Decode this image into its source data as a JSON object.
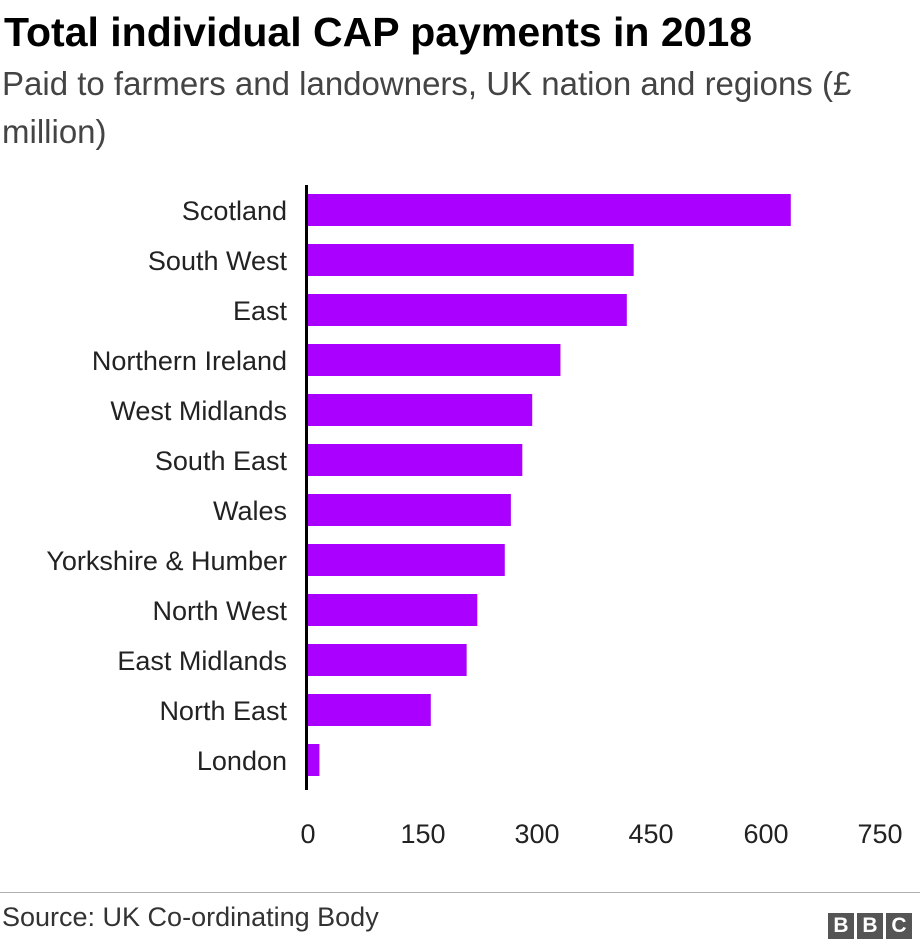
{
  "header": {
    "title": "Total individual CAP payments in 2018",
    "subtitle": "Paid to farmers and landowners, UK nation and regions (£ million)"
  },
  "footer": {
    "source": "Source: UK Co-ordinating Body",
    "logo": [
      "B",
      "B",
      "C"
    ]
  },
  "colors": {
    "bar": "#aa00ff",
    "axis": "#000000",
    "text": "#222222"
  },
  "chart_data": {
    "type": "bar",
    "orientation": "horizontal",
    "title": "Total individual CAP payments in 2018",
    "subtitle": "Paid to farmers and landowners, UK nation and regions (£ million)",
    "categories": [
      "Scotland",
      "South West",
      "East",
      "Northern Ireland",
      "West Midlands",
      "South East",
      "Wales",
      "Yorkshire & Humber",
      "North West",
      "East Midlands",
      "North East",
      "London"
    ],
    "values": [
      633,
      427,
      418,
      331,
      294,
      281,
      266,
      258,
      222,
      208,
      161,
      15
    ],
    "xlim": [
      0,
      750
    ],
    "xticks": [
      "0",
      "150",
      "300",
      "450",
      "600",
      "750"
    ],
    "xlabel": "",
    "ylabel": "",
    "grid": false,
    "legend": "none"
  }
}
